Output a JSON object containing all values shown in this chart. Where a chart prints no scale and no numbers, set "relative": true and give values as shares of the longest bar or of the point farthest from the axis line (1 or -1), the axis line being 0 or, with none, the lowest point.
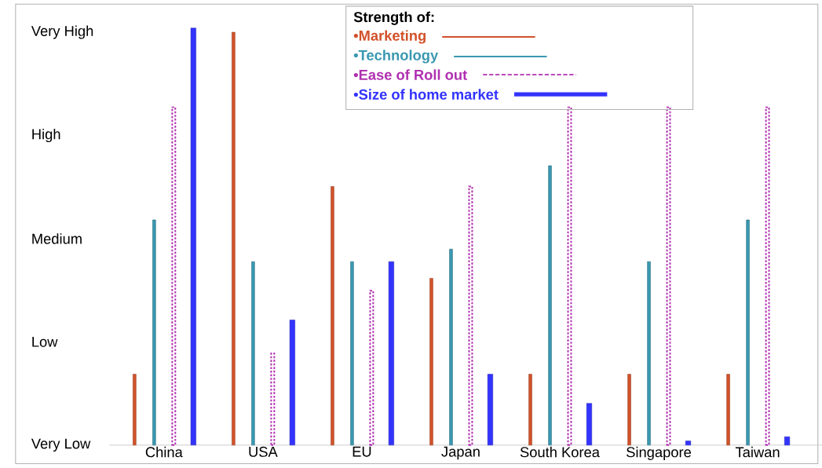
{
  "chart_data": {
    "type": "bar",
    "relative": true,
    "legend_title": "Strength of:",
    "legend": "top",
    "grid": false,
    "categories": [
      "China",
      "USA",
      "EU",
      "Japan",
      "South Korea",
      "Singapore",
      "Taiwan"
    ],
    "annotations": [
      "Very Low",
      "Low",
      "Medium",
      "High",
      "Very High"
    ],
    "series": [
      {
        "name": "•Marketing",
        "color": "#d2522a",
        "values": [
          0.17,
          0.99,
          0.62,
          0.4,
          0.17,
          0.17,
          0.17
        ]
      },
      {
        "name": "•Technology",
        "color": "#3a98b0",
        "values": [
          0.54,
          0.44,
          0.44,
          0.47,
          0.67,
          0.44,
          0.54
        ]
      },
      {
        "name": "•Ease of Roll out",
        "color": "#b030b0",
        "line_style": "dashed",
        "values": [
          0.81,
          0.22,
          0.37,
          0.62,
          0.81,
          0.81,
          0.81
        ]
      },
      {
        "name": "•Size of home market",
        "color": "#3333ff",
        "values": [
          1,
          0.3,
          0.44,
          0.17,
          0.1,
          0.01,
          0.02
        ]
      }
    ]
  }
}
